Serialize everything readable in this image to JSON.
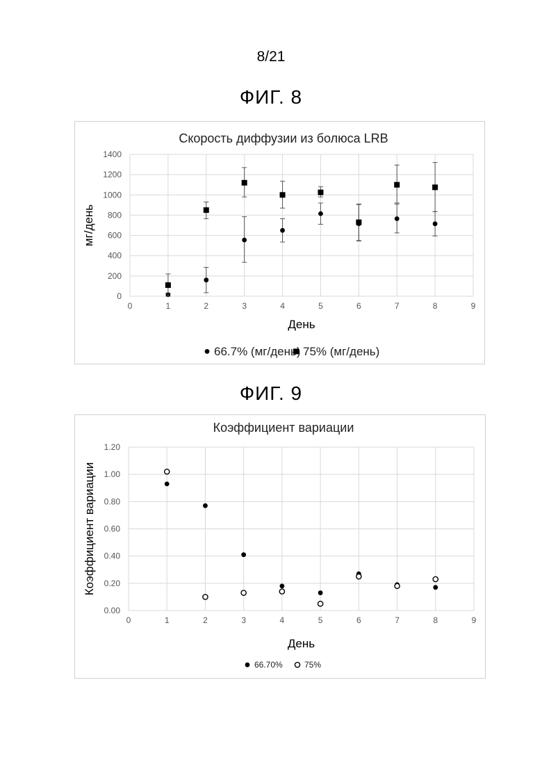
{
  "page_number": "8/21",
  "figures": [
    {
      "title": "ФИГ. 8"
    },
    {
      "title": "ФИГ. 9"
    }
  ],
  "chart_data": [
    {
      "type": "scatter",
      "title": "Скорость диффузии из болюса LRB",
      "xlabel": "День",
      "ylabel": "мг/день",
      "xlim": [
        0,
        9
      ],
      "ylim": [
        0,
        1400
      ],
      "xticks": [
        "0",
        "1",
        "2",
        "3",
        "4",
        "5",
        "6",
        "7",
        "8",
        "9"
      ],
      "yticks": [
        "0",
        "200",
        "400",
        "600",
        "800",
        "1000",
        "1200",
        "1400"
      ],
      "grid": true,
      "legend_position": "bottom",
      "series": [
        {
          "name": "66.7% (мг/день)",
          "marker": "circle-filled",
          "x": [
            1,
            2,
            3,
            4,
            5,
            6,
            7,
            8
          ],
          "y": [
            15,
            160,
            555,
            650,
            815,
            715,
            765,
            715
          ],
          "err_low": [
            15,
            125,
            220,
            115,
            105,
            170,
            140,
            120
          ],
          "err_high": [
            15,
            125,
            230,
            115,
            105,
            190,
            145,
            120
          ]
        },
        {
          "name": "75% (мг/день)",
          "marker": "square-filled",
          "x": [
            1,
            2,
            3,
            4,
            5,
            6,
            7,
            8
          ],
          "y": [
            110,
            850,
            1120,
            1000,
            1025,
            730,
            1100,
            1075
          ],
          "err_low": [
            110,
            85,
            140,
            130,
            45,
            180,
            180,
            240
          ],
          "err_high": [
            110,
            80,
            150,
            135,
            55,
            180,
            195,
            245
          ]
        }
      ]
    },
    {
      "type": "scatter",
      "title": "Коэффициент вариации",
      "xlabel": "День",
      "ylabel": "Коэффициент вариации",
      "xlim": [
        0,
        9
      ],
      "ylim": [
        0,
        1.2
      ],
      "xticks": [
        "0",
        "1",
        "2",
        "3",
        "4",
        "5",
        "6",
        "7",
        "8",
        "9"
      ],
      "yticks": [
        "0.00",
        "0.20",
        "0.40",
        "0.60",
        "0.80",
        "1.00",
        "1.20"
      ],
      "grid": true,
      "legend_position": "bottom",
      "series": [
        {
          "name": "66.70%",
          "marker": "circle-filled",
          "x": [
            1,
            2,
            3,
            4,
            5,
            6,
            7,
            8
          ],
          "y": [
            0.93,
            0.77,
            0.41,
            0.18,
            0.13,
            0.27,
            0.19,
            0.17
          ]
        },
        {
          "name": "75%",
          "marker": "circle-open",
          "x": [
            1,
            2,
            3,
            4,
            5,
            6,
            7,
            8
          ],
          "y": [
            1.02,
            0.1,
            0.13,
            0.14,
            0.05,
            0.25,
            0.18,
            0.23
          ]
        }
      ]
    }
  ]
}
